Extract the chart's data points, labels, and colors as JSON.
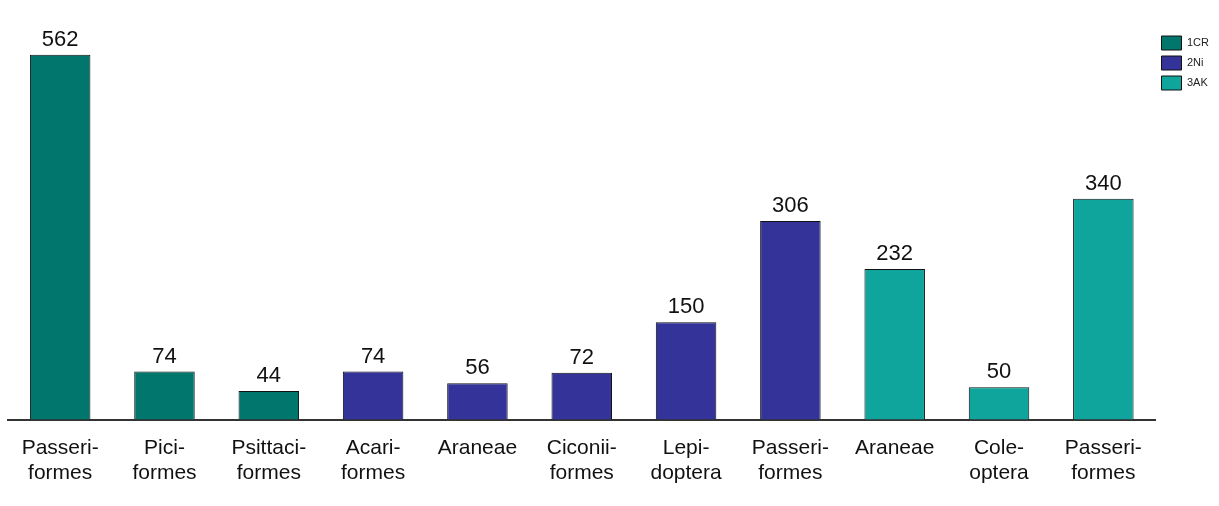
{
  "chart_data": {
    "type": "bar",
    "categories": [
      "Passeri-\nformes",
      "Pici-\nformes",
      "Psittaci-\nformes",
      "Acari-\nformes",
      "Araneae",
      "Ciconii-\nformes",
      "Lepi-\ndoptera",
      "Passeri-\nformes",
      "Araneae",
      "Cole-\noptera",
      "Passeri-\nformes"
    ],
    "series": [
      {
        "name": "1CR",
        "color": "#00766c",
        "values": [
          562,
          74,
          44,
          null,
          null,
          null,
          null,
          null,
          null,
          null,
          null
        ]
      },
      {
        "name": "2Ni",
        "color": "#333399",
        "values": [
          null,
          null,
          null,
          74,
          56,
          72,
          150,
          306,
          null,
          null,
          null
        ]
      },
      {
        "name": "3AK",
        "color": "#10a59c",
        "values": [
          null,
          null,
          null,
          null,
          null,
          null,
          null,
          null,
          232,
          50,
          340
        ]
      }
    ],
    "data_labels": true,
    "legend": "top right",
    "grid": false
  }
}
